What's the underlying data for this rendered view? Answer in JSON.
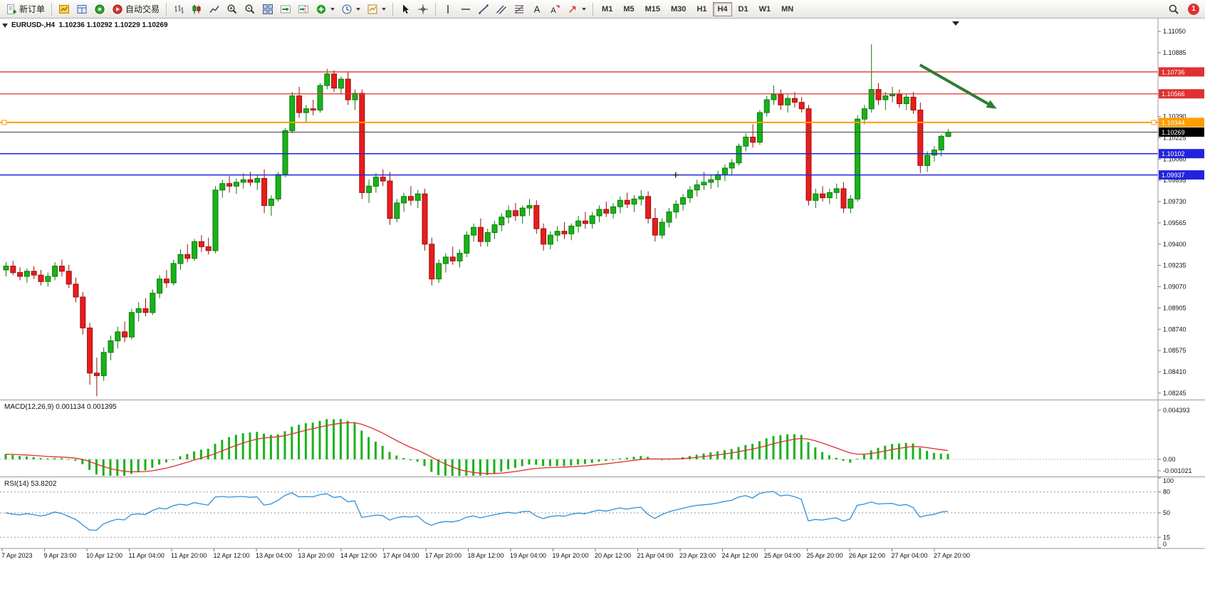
{
  "toolbar": {
    "items": [
      {
        "type": "button",
        "name": "new-order-button",
        "icon": "new-order-icon",
        "label": "新订单"
      },
      {
        "type": "separator"
      },
      {
        "type": "button",
        "name": "market-watch-button",
        "icon": "market-watch-icon"
      },
      {
        "type": "button",
        "name": "data-window-button",
        "icon": "data-window-icon"
      },
      {
        "type": "button",
        "name": "navigator-button",
        "icon": "navigator-icon"
      },
      {
        "type": "button",
        "name": "auto-trading-button",
        "icon": "auto-trading-icon",
        "label": "自动交易"
      },
      {
        "type": "separator"
      },
      {
        "type": "button",
        "name": "bar-chart-button",
        "icon": "bar-chart-icon"
      },
      {
        "type": "button",
        "name": "candlestick-chart-button",
        "icon": "candlestick-chart-icon"
      },
      {
        "type": "button",
        "name": "line-chart-button",
        "icon": "line-chart-icon"
      },
      {
        "type": "button",
        "name": "zoom-in-button",
        "icon": "zoom-in-icon"
      },
      {
        "type": "button",
        "name": "zoom-out-button",
        "icon": "zoom-out-icon"
      },
      {
        "type": "button",
        "name": "tile-windows-button",
        "icon": "tile-windows-icon"
      },
      {
        "type": "button",
        "name": "auto-scroll-button",
        "icon": "auto-scroll-icon"
      },
      {
        "type": "button",
        "name": "chart-shift-button",
        "icon": "chart-shift-icon"
      },
      {
        "type": "button",
        "name": "indicators-button",
        "icon": "indicators-icon",
        "dropdown": true
      },
      {
        "type": "button",
        "name": "periods-button",
        "icon": "periods-icon",
        "dropdown": true
      },
      {
        "type": "button",
        "name": "templates-button",
        "icon": "templates-icon",
        "dropdown": true
      },
      {
        "type": "separator"
      },
      {
        "type": "button",
        "name": "cursor-button",
        "icon": "cursor-icon"
      },
      {
        "type": "button",
        "name": "crosshair-button",
        "icon": "crosshair-icon"
      },
      {
        "type": "separator"
      },
      {
        "type": "button",
        "name": "vertical-line-button",
        "icon": "vertical-line-icon"
      },
      {
        "type": "button",
        "name": "horizontal-line-button",
        "icon": "horizontal-line-icon"
      },
      {
        "type": "button",
        "name": "trendline-button",
        "icon": "trendline-icon"
      },
      {
        "type": "button",
        "name": "equidistant-channel-button",
        "icon": "channel-icon"
      },
      {
        "type": "button",
        "name": "fibonacci-button",
        "icon": "fibonacci-icon"
      },
      {
        "type": "button",
        "name": "text-button",
        "icon": "text-icon"
      },
      {
        "type": "button",
        "name": "text-label-button",
        "icon": "text-label-icon"
      },
      {
        "type": "button",
        "name": "arrows-button",
        "icon": "arrow-tools-icon",
        "dropdown": true
      },
      {
        "type": "separator"
      },
      {
        "type": "timeframes"
      }
    ],
    "timeframes": {
      "labels": [
        "M1",
        "M5",
        "M15",
        "M30",
        "H1",
        "H4",
        "D1",
        "W1",
        "MN"
      ],
      "active": "H4"
    },
    "notification_count": "1"
  },
  "chart": {
    "symbol_header": "EURUSD-,H4  1.10236 1.10292 1.10229 1.10269",
    "macd_header": "MACD(12,26,9) 0.001134 0.001395",
    "rsi_header": "RSI(14) 53.8202"
  },
  "chart_data": {
    "type": "candlestick",
    "symbol": "EURUSD-",
    "timeframe": "H4",
    "current": {
      "open": "1.10236",
      "high": "1.10292",
      "low": "1.10229",
      "close": "1.10269"
    },
    "price_axis": {
      "range": [
        1.082,
        1.1115
      ],
      "ticks": [
        "1.11050",
        "1.10885",
        "1.10720",
        "1.10555",
        "1.10390",
        "1.10225",
        "1.10060",
        "1.09895",
        "1.09730",
        "1.09565",
        "1.09400",
        "1.09235",
        "1.09070",
        "1.08905",
        "1.08740",
        "1.08575",
        "1.08410",
        "1.08245"
      ]
    },
    "time_axis": {
      "labels": [
        "7 Apr 2023",
        "9 Apr 23:00",
        "10 Apr 12:00",
        "11 Apr 04:00",
        "11 Apr 20:00",
        "12 Apr 12:00",
        "13 Apr 04:00",
        "13 Apr 20:00",
        "14 Apr 12:00",
        "17 Apr 04:00",
        "17 Apr 20:00",
        "18 Apr 12:00",
        "19 Apr 04:00",
        "19 Apr 20:00",
        "20 Apr 12:00",
        "21 Apr 04:00",
        "23 Apr 23:00",
        "24 Apr 12:00",
        "25 Apr 04:00",
        "25 Apr 20:00",
        "26 Apr 12:00",
        "27 Apr 04:00",
        "27 Apr 20:00"
      ]
    },
    "horizontal_lines": [
      {
        "name": "resistance-line-1",
        "price": 1.10736,
        "label": "1.10736",
        "color": "#e03030",
        "width": 1.3
      },
      {
        "name": "resistance-line-2",
        "price": 1.10566,
        "label": "1.10566",
        "color": "#e03030",
        "width": 1.3
      },
      {
        "name": "pivot-line",
        "price": 1.10344,
        "label": "1.10344",
        "color": "#ff9d00",
        "width": 2,
        "handles": true
      },
      {
        "name": "support-line-1",
        "price": 1.10102,
        "label": "1.10102",
        "color": "#2323dd",
        "width": 1.5
      },
      {
        "name": "support-line-2",
        "price": 1.09937,
        "label": "1.09937",
        "color": "#2323dd",
        "width": 1.5,
        "center_marker_index": 96
      }
    ],
    "current_price": {
      "price": 1.10269,
      "label": "1.10269",
      "color": "#000000"
    },
    "annotation_arrow": {
      "color": "#2e7d32",
      "from_index": 131,
      "from_price": 1.1079,
      "to_index": 142,
      "to_price": 1.1045
    },
    "colors": {
      "up": "#19b219",
      "up_border": "#0b7a0b",
      "down": "#ea1c1c",
      "down_border": "#9a0f0f",
      "macd_hist": "#19b219",
      "macd_signal": "#e03030",
      "rsi": "#2f8fd6",
      "axis_text": "#111111"
    },
    "macd": {
      "name": "MACD",
      "params": "12,26,9",
      "value_main": "0.001134",
      "value_signal": "0.001395",
      "range": [
        -0.00147,
        0.00522
      ],
      "axis_ticks": [
        "0.004393",
        "0.00",
        "-0.001021"
      ]
    },
    "rsi": {
      "name": "RSI",
      "params": "14",
      "value": "53.8202",
      "range": [
        0,
        100
      ],
      "levels": [
        80,
        50,
        15
      ],
      "axis_ticks": [
        "100",
        "80",
        "50",
        "15",
        "0"
      ]
    },
    "candles": [
      [
        1.092,
        1.0926,
        1.0915,
        1.0923
      ],
      [
        1.0923,
        1.0927,
        1.0916,
        1.0918
      ],
      [
        1.0918,
        1.0922,
        1.0912,
        1.0915
      ],
      [
        1.0915,
        1.0921,
        1.091,
        1.0919
      ],
      [
        1.0919,
        1.0923,
        1.0913,
        1.0916
      ],
      [
        1.0916,
        1.092,
        1.0908,
        1.0911
      ],
      [
        1.0911,
        1.0918,
        1.0907,
        1.0915
      ],
      [
        1.0915,
        1.0926,
        1.0912,
        1.0923
      ],
      [
        1.0923,
        1.0928,
        1.0915,
        1.0919
      ],
      [
        1.0919,
        1.0924,
        1.0906,
        1.0909
      ],
      [
        1.0909,
        1.0914,
        1.0895,
        1.0899
      ],
      [
        1.0899,
        1.0903,
        1.087,
        1.0875
      ],
      [
        1.0875,
        1.0879,
        1.0831,
        1.084
      ],
      [
        1.084,
        1.0852,
        1.0822,
        1.0838
      ],
      [
        1.0838,
        1.086,
        1.0834,
        1.0856
      ],
      [
        1.0856,
        1.0869,
        1.085,
        1.0865
      ],
      [
        1.0865,
        1.0876,
        1.0859,
        1.0872
      ],
      [
        1.0872,
        1.088,
        1.0864,
        1.0868
      ],
      [
        1.0868,
        1.089,
        1.0866,
        1.0887
      ],
      [
        1.0887,
        1.0895,
        1.088,
        1.089
      ],
      [
        1.089,
        1.0898,
        1.0884,
        1.0887
      ],
      [
        1.0887,
        1.0905,
        1.0885,
        1.0902
      ],
      [
        1.0902,
        1.0916,
        1.0898,
        1.0913
      ],
      [
        1.0913,
        1.092,
        1.0906,
        1.091
      ],
      [
        1.091,
        1.0928,
        1.0908,
        1.0925
      ],
      [
        1.0925,
        1.0936,
        1.092,
        1.0932
      ],
      [
        1.0932,
        1.094,
        1.0926,
        1.0929
      ],
      [
        1.0929,
        1.0944,
        1.0927,
        1.0942
      ],
      [
        1.0942,
        1.0947,
        1.0934,
        1.0938
      ],
      [
        1.0938,
        1.0945,
        1.0932,
        1.0935
      ],
      [
        1.0935,
        1.0985,
        1.0933,
        1.0982
      ],
      [
        1.0982,
        1.099,
        1.0976,
        1.0987
      ],
      [
        1.0987,
        1.0993,
        1.098,
        1.0985
      ],
      [
        1.0985,
        1.0991,
        1.0979,
        1.0988
      ],
      [
        1.0988,
        1.0995,
        1.0983,
        1.099
      ],
      [
        1.099,
        1.0996,
        1.0985,
        1.0988
      ],
      [
        1.0988,
        1.0994,
        1.0982,
        1.0991
      ],
      [
        1.0991,
        1.0998,
        1.0964,
        1.097
      ],
      [
        1.097,
        1.0978,
        1.0962,
        1.0975
      ],
      [
        1.0975,
        1.0996,
        1.0973,
        1.0994
      ],
      [
        1.0994,
        1.103,
        1.0992,
        1.1028
      ],
      [
        1.1028,
        1.1058,
        1.1026,
        1.1055
      ],
      [
        1.1055,
        1.1062,
        1.1038,
        1.1042
      ],
      [
        1.1042,
        1.1048,
        1.1034,
        1.1045
      ],
      [
        1.1045,
        1.1052,
        1.104,
        1.1044
      ],
      [
        1.1044,
        1.1065,
        1.1042,
        1.1063
      ],
      [
        1.1063,
        1.1076,
        1.106,
        1.1072
      ],
      [
        1.1072,
        1.1075,
        1.1058,
        1.1061
      ],
      [
        1.1061,
        1.107,
        1.1056,
        1.1068
      ],
      [
        1.1068,
        1.1074,
        1.1048,
        1.1052
      ],
      [
        1.1052,
        1.106,
        1.1044,
        1.1057
      ],
      [
        1.1057,
        1.106,
        1.0975,
        1.098
      ],
      [
        1.098,
        1.099,
        1.0972,
        1.0985
      ],
      [
        1.0985,
        1.0995,
        1.098,
        1.0992
      ],
      [
        1.0992,
        1.0998,
        1.0985,
        1.0989
      ],
      [
        1.0989,
        1.0996,
        1.0955,
        1.096
      ],
      [
        1.096,
        1.0975,
        1.0957,
        1.0972
      ],
      [
        1.0972,
        1.098,
        1.0965,
        1.0977
      ],
      [
        1.0977,
        1.0985,
        1.097,
        1.0974
      ],
      [
        1.0974,
        1.0982,
        1.0968,
        1.0979
      ],
      [
        1.0979,
        1.0983,
        1.0935,
        1.094
      ],
      [
        1.094,
        1.0945,
        1.0908,
        1.0913
      ],
      [
        1.0913,
        1.0928,
        1.091,
        1.0925
      ],
      [
        1.0925,
        1.0933,
        1.0918,
        1.093
      ],
      [
        1.093,
        1.0938,
        1.0924,
        1.0927
      ],
      [
        1.0927,
        1.0936,
        1.0922,
        1.0933
      ],
      [
        1.0933,
        1.095,
        1.093,
        1.0947
      ],
      [
        1.0947,
        1.0956,
        1.0942,
        1.0953
      ],
      [
        1.0953,
        1.096,
        1.0938,
        1.0942
      ],
      [
        1.0942,
        1.0952,
        1.0938,
        1.0949
      ],
      [
        1.0949,
        1.0958,
        1.0944,
        1.0955
      ],
      [
        1.0955,
        1.0964,
        1.095,
        1.0961
      ],
      [
        1.0961,
        1.097,
        1.0956,
        1.0966
      ],
      [
        1.0966,
        1.0972,
        1.0958,
        1.0962
      ],
      [
        1.0962,
        1.097,
        1.0956,
        1.0968
      ],
      [
        1.0968,
        1.0975,
        1.0962,
        1.097
      ],
      [
        1.097,
        1.0974,
        1.0948,
        1.0952
      ],
      [
        1.0952,
        1.0956,
        1.0935,
        1.094
      ],
      [
        1.094,
        1.095,
        1.0936,
        1.0947
      ],
      [
        1.0947,
        1.0954,
        1.0942,
        1.095
      ],
      [
        1.095,
        1.0957,
        1.0944,
        1.0948
      ],
      [
        1.0948,
        1.0956,
        1.0943,
        1.0954
      ],
      [
        1.0954,
        1.0962,
        1.0949,
        1.0958
      ],
      [
        1.0958,
        1.0965,
        1.0952,
        1.0956
      ],
      [
        1.0956,
        1.0965,
        1.0952,
        1.0962
      ],
      [
        1.0962,
        1.097,
        1.0957,
        1.0967
      ],
      [
        1.0967,
        1.0973,
        1.0961,
        1.0964
      ],
      [
        1.0964,
        1.0972,
        1.096,
        1.0969
      ],
      [
        1.0969,
        1.0977,
        1.0964,
        1.0974
      ],
      [
        1.0974,
        1.098,
        1.0968,
        1.0971
      ],
      [
        1.0971,
        1.0978,
        1.0965,
        1.0975
      ],
      [
        1.0975,
        1.0982,
        1.097,
        1.0977
      ],
      [
        1.0977,
        1.0981,
        1.0956,
        1.096
      ],
      [
        1.096,
        1.0968,
        1.0942,
        1.0947
      ],
      [
        1.0947,
        1.096,
        1.0944,
        1.0957
      ],
      [
        1.0957,
        1.0968,
        1.0953,
        1.0965
      ],
      [
        1.0965,
        1.0974,
        1.096,
        1.0971
      ],
      [
        1.0971,
        1.0979,
        1.0966,
        1.0976
      ],
      [
        1.0976,
        1.0985,
        1.0972,
        1.0982
      ],
      [
        1.0982,
        1.099,
        1.0977,
        1.0986
      ],
      [
        1.0986,
        1.0996,
        1.0982,
        1.0988
      ],
      [
        1.0988,
        1.0994,
        1.0983,
        1.099
      ],
      [
        1.099,
        1.0997,
        1.0984,
        1.0994
      ],
      [
        1.0994,
        1.1002,
        1.0989,
        1.0999
      ],
      [
        1.0999,
        1.1006,
        1.0994,
        1.1003
      ],
      [
        1.1003,
        1.1018,
        1.1001,
        1.1016
      ],
      [
        1.1016,
        1.1026,
        1.1012,
        1.1023
      ],
      [
        1.1023,
        1.1033,
        1.1015,
        1.1019
      ],
      [
        1.1019,
        1.1044,
        1.1017,
        1.1042
      ],
      [
        1.1042,
        1.1055,
        1.1039,
        1.1052
      ],
      [
        1.1052,
        1.1063,
        1.1048,
        1.1056
      ],
      [
        1.1056,
        1.106,
        1.1044,
        1.1048
      ],
      [
        1.1048,
        1.1056,
        1.1042,
        1.1053
      ],
      [
        1.1053,
        1.1058,
        1.1046,
        1.105
      ],
      [
        1.105,
        1.1054,
        1.1042,
        1.1045
      ],
      [
        1.1045,
        1.1048,
        1.097,
        1.0974
      ],
      [
        1.0974,
        1.0983,
        1.0968,
        1.0979
      ],
      [
        1.0979,
        1.0985,
        1.0973,
        1.0976
      ],
      [
        1.0976,
        1.0983,
        1.0971,
        1.098
      ],
      [
        1.098,
        1.0987,
        1.0975,
        1.0983
      ],
      [
        1.0983,
        1.0988,
        1.0964,
        1.0968
      ],
      [
        1.0968,
        1.0978,
        1.0964,
        1.0975
      ],
      [
        1.0975,
        1.104,
        1.0973,
        1.1037
      ],
      [
        1.1037,
        1.1048,
        1.1033,
        1.1045
      ],
      [
        1.1045,
        1.1095,
        1.1042,
        1.106
      ],
      [
        1.106,
        1.1065,
        1.1048,
        1.1052
      ],
      [
        1.1052,
        1.1058,
        1.1044,
        1.1055
      ],
      [
        1.1055,
        1.1062,
        1.105,
        1.1056
      ],
      [
        1.1056,
        1.106,
        1.1046,
        1.1049
      ],
      [
        1.1049,
        1.1057,
        1.1044,
        1.1054
      ],
      [
        1.1054,
        1.1058,
        1.1041,
        1.1044
      ],
      [
        1.1044,
        1.105,
        1.0995,
        1.1001
      ],
      [
        1.1001,
        1.1012,
        1.0996,
        1.1009
      ],
      [
        1.1009,
        1.1016,
        1.1004,
        1.1013
      ],
      [
        1.1013,
        1.1025,
        1.1008,
        1.10236
      ],
      [
        1.10236,
        1.10292,
        1.10229,
        1.10269
      ]
    ]
  }
}
